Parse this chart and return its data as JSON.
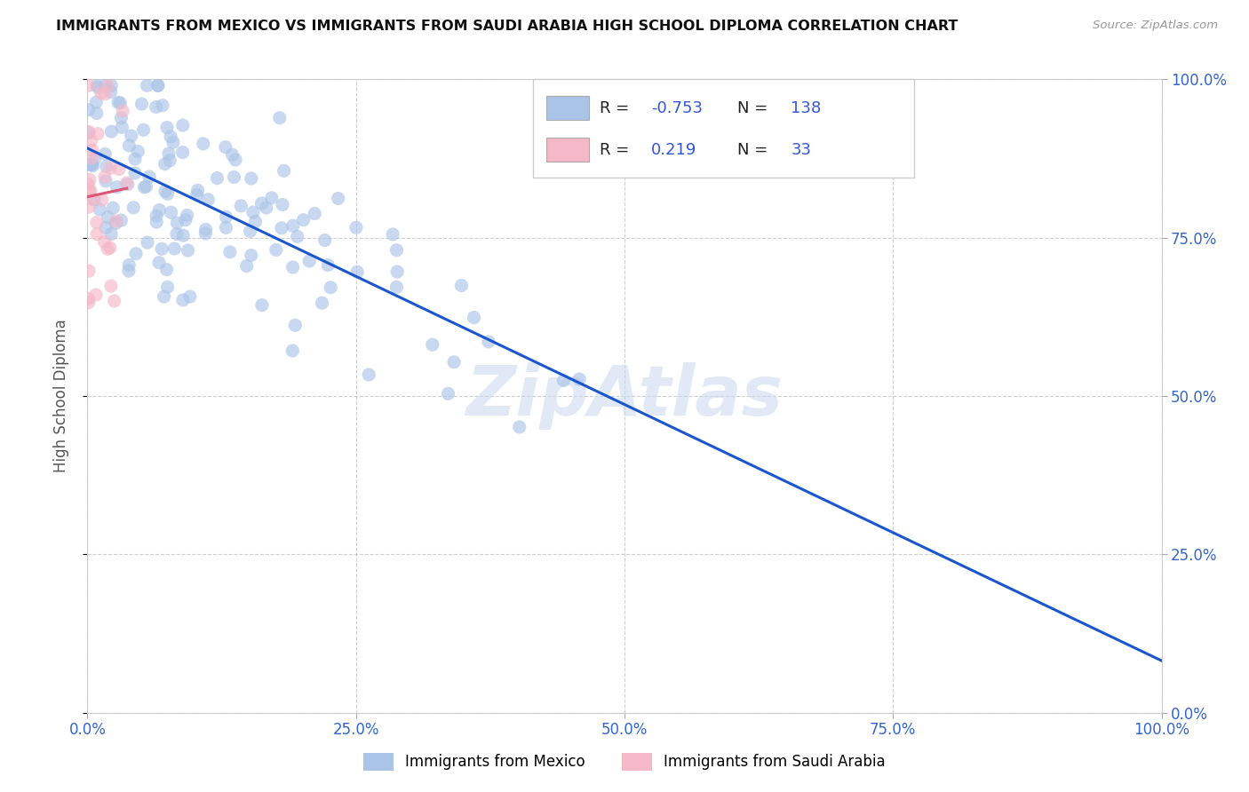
{
  "title": "IMMIGRANTS FROM MEXICO VS IMMIGRANTS FROM SAUDI ARABIA HIGH SCHOOL DIPLOMA CORRELATION CHART",
  "source": "Source: ZipAtlas.com",
  "ylabel": "High School Diploma",
  "legend_label1": "Immigrants from Mexico",
  "legend_label2": "Immigrants from Saudi Arabia",
  "R_mexico": -0.753,
  "N_mexico": 138,
  "R_saudi": 0.219,
  "N_saudi": 33,
  "color_mexico": "#aac4e8",
  "color_saudi": "#f4b8c8",
  "color_line_mexico": "#1a56cc",
  "color_line_saudi": "#dd5577",
  "watermark": "ZipAtlas",
  "background_color": "#ffffff",
  "grid_color": "#bbbbbb",
  "title_color": "#111111",
  "axis_label_color": "#555555",
  "tick_color": "#3366cc",
  "legend_value_color": "#3355dd",
  "xlim": [
    0.0,
    1.0
  ],
  "ylim": [
    0.0,
    1.0
  ],
  "xticks": [
    0.0,
    0.25,
    0.5,
    0.75,
    1.0
  ],
  "xtick_labels": [
    "0.0%",
    "25.0%",
    "50.0%",
    "75.0%",
    "100.0%"
  ],
  "ytick_labels_right": [
    "0.0%",
    "25.0%",
    "50.0%",
    "75.0%",
    "100.0%"
  ]
}
